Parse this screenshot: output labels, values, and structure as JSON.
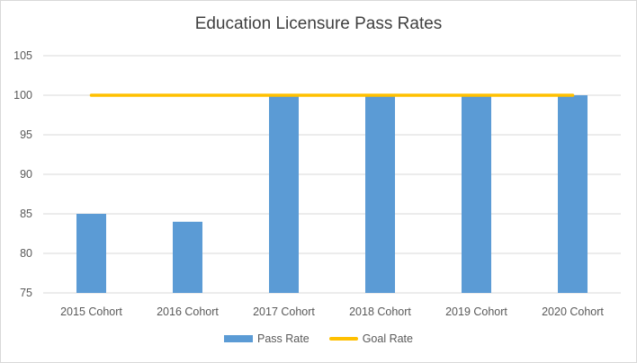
{
  "colors": {
    "bar": "#5b9bd5",
    "goal": "#ffc000",
    "grid": "#d9d9d9",
    "axis_text": "#595959"
  },
  "chart_data": {
    "type": "bar",
    "title": "Education Licensure Pass Rates",
    "xlabel": "",
    "ylabel": "",
    "categories": [
      "2015 Cohort",
      "2016 Cohort",
      "2017 Cohort",
      "2018 Cohort",
      "2019 Cohort",
      "2020 Cohort"
    ],
    "series": [
      {
        "name": "Pass Rate",
        "type": "bar",
        "values": [
          85,
          84,
          100,
          100,
          100,
          100
        ]
      },
      {
        "name": "Goal Rate",
        "type": "line",
        "values": [
          100,
          100,
          100,
          100,
          100,
          100
        ]
      }
    ],
    "ylim": [
      75,
      105
    ],
    "yticks": [
      75,
      80,
      85,
      90,
      95,
      100,
      105
    ],
    "grid": true,
    "legend_position": "bottom"
  }
}
